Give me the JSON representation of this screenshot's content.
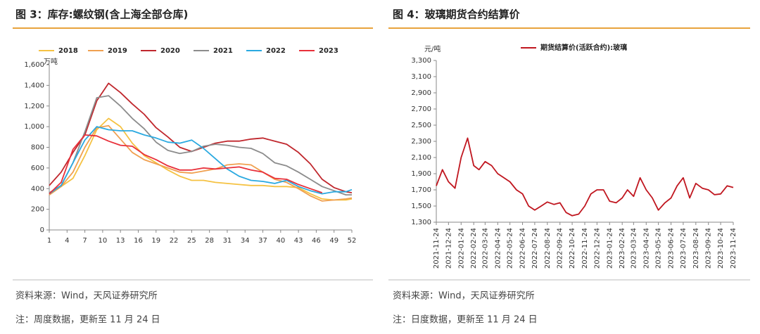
{
  "chart_data": [
    {
      "type": "line",
      "title": "图 3：库存:螺纹钢(含上海全部仓库)",
      "y_label": "万吨",
      "source": "资料来源：Wind，天风证券研究所",
      "note": "注：周度数据，更新至 11 月 24 日",
      "x": [
        1,
        3,
        5,
        7,
        9,
        11,
        13,
        15,
        17,
        19,
        21,
        23,
        25,
        27,
        29,
        31,
        33,
        35,
        37,
        39,
        41,
        43,
        45,
        47,
        49,
        51,
        52
      ],
      "xlim": [
        1,
        52
      ],
      "xticks": [
        1,
        4,
        7,
        10,
        13,
        16,
        19,
        22,
        25,
        28,
        31,
        34,
        37,
        40,
        43,
        46,
        49,
        52
      ],
      "ylim": [
        0,
        1600
      ],
      "yticks": [
        0,
        200,
        400,
        600,
        800,
        {
          "value": 1000,
          "label": "1,000"
        },
        {
          "value": 1200,
          "label": "1,200"
        },
        {
          "value": 1400,
          "label": "1,400"
        },
        {
          "value": 1600,
          "label": "1,600"
        }
      ],
      "series": [
        {
          "name": "2018",
          "color": "#f5c242",
          "values": [
            340,
            420,
            500,
            720,
            970,
            1080,
            1000,
            840,
            720,
            650,
            580,
            520,
            480,
            480,
            460,
            450,
            440,
            430,
            430,
            420,
            420,
            410,
            350,
            300,
            290,
            290,
            300
          ]
        },
        {
          "name": "2019",
          "color": "#f0a050",
          "values": [
            340,
            420,
            560,
            800,
            990,
            1010,
            880,
            750,
            680,
            640,
            600,
            560,
            550,
            570,
            590,
            630,
            640,
            630,
            560,
            490,
            460,
            400,
            330,
            280,
            290,
            300,
            310
          ]
        },
        {
          "name": "2020",
          "color": "#c0272d",
          "values": [
            430,
            560,
            750,
            920,
            1250,
            1420,
            1330,
            1220,
            1120,
            990,
            900,
            800,
            760,
            800,
            840,
            860,
            860,
            880,
            890,
            860,
            830,
            750,
            640,
            490,
            410,
            370,
            360
          ]
        },
        {
          "name": "2021",
          "color": "#8c8c8c",
          "values": [
            360,
            430,
            650,
            950,
            1280,
            1300,
            1200,
            1080,
            980,
            850,
            770,
            740,
            760,
            810,
            830,
            820,
            800,
            790,
            740,
            650,
            620,
            560,
            490,
            420,
            380,
            340,
            340
          ]
        },
        {
          "name": "2022",
          "color": "#2aa9e0",
          "values": [
            350,
            430,
            650,
            870,
            1000,
            970,
            960,
            960,
            920,
            890,
            850,
            840,
            870,
            790,
            690,
            590,
            520,
            480,
            470,
            450,
            480,
            420,
            380,
            350,
            370,
            370,
            390
          ]
        },
        {
          "name": "2023",
          "color": "#e8303a",
          "values": [
            350,
            460,
            780,
            920,
            910,
            860,
            820,
            810,
            730,
            680,
            620,
            580,
            580,
            600,
            590,
            600,
            610,
            580,
            560,
            500,
            490,
            440,
            400,
            360,
            null,
            null,
            null
          ]
        }
      ]
    },
    {
      "type": "line",
      "title": "图 4：玻璃期货合约结算价",
      "y_label": "元/吨",
      "source": "资料来源：Wind，天风证券研究所",
      "note": "注：日度数据，更新至 11 月 24 日",
      "x": [
        "2021-11-24",
        "2021-12-09",
        "2021-12-24",
        "2022-01-09",
        "2022-01-24",
        "2022-02-09",
        "2022-02-24",
        "2022-03-09",
        "2022-03-24",
        "2022-04-09",
        "2022-04-24",
        "2022-05-09",
        "2022-05-24",
        "2022-06-09",
        "2022-06-24",
        "2022-07-09",
        "2022-07-24",
        "2022-08-09",
        "2022-08-24",
        "2022-09-09",
        "2022-09-24",
        "2022-10-09",
        "2022-10-24",
        "2022-11-09",
        "2022-11-24",
        "2022-12-09",
        "2022-12-24",
        "2023-01-09",
        "2023-01-24",
        "2023-02-09",
        "2023-02-24",
        "2023-03-09",
        "2023-03-24",
        "2023-04-09",
        "2023-04-24",
        "2023-05-09",
        "2023-05-24",
        "2023-06-09",
        "2023-06-24",
        "2023-07-09",
        "2023-07-24",
        "2023-08-09",
        "2023-08-24",
        "2023-09-09",
        "2023-09-24",
        "2023-10-09",
        "2023-10-24",
        "2023-11-09",
        "2023-11-24"
      ],
      "xlim": [
        "2021-11-24",
        "2023-11-24"
      ],
      "xticks": [
        "2021-11-24",
        "2021-12-24",
        "2022-01-24",
        "2022-02-24",
        "2022-03-24",
        "2022-04-24",
        "2022-05-24",
        "2022-06-24",
        "2022-07-24",
        "2022-08-24",
        "2022-09-24",
        "2022-10-24",
        "2022-11-24",
        "2022-12-24",
        "2023-01-24",
        "2023-02-24",
        "2023-03-24",
        "2023-04-24",
        "2023-05-24",
        "2023-06-24",
        "2023-07-24",
        "2023-08-24",
        "2023-09-24",
        "2023-10-24",
        "2023-11-24"
      ],
      "ylim": [
        1300,
        3300
      ],
      "yticks": [
        {
          "value": 1300,
          "label": "1,300"
        },
        {
          "value": 1500,
          "label": "1,500"
        },
        {
          "value": 1700,
          "label": "1,700"
        },
        {
          "value": 1900,
          "label": "1,900"
        },
        {
          "value": 2100,
          "label": "2,100"
        },
        {
          "value": 2300,
          "label": "2,300"
        },
        {
          "value": 2500,
          "label": "2,500"
        },
        {
          "value": 2700,
          "label": "2,700"
        },
        {
          "value": 2900,
          "label": "2,900"
        },
        {
          "value": 3100,
          "label": "3,100"
        },
        {
          "value": 3300,
          "label": "3,300"
        }
      ],
      "series": [
        {
          "name": "期货结算价(活跃合约):玻璃",
          "color": "#c0161f",
          "values": [
            1750,
            1950,
            1800,
            1720,
            2100,
            2340,
            2000,
            1950,
            2050,
            2000,
            1900,
            1850,
            1800,
            1700,
            1650,
            1500,
            1450,
            1500,
            1550,
            1520,
            1540,
            1420,
            1380,
            1400,
            1500,
            1650,
            1700,
            1700,
            1560,
            1540,
            1600,
            1700,
            1620,
            1850,
            1700,
            1600,
            1450,
            1540,
            1600,
            1750,
            1850,
            1600,
            1780,
            1720,
            1700,
            1640,
            1650,
            1750,
            1730
          ]
        }
      ]
    }
  ]
}
